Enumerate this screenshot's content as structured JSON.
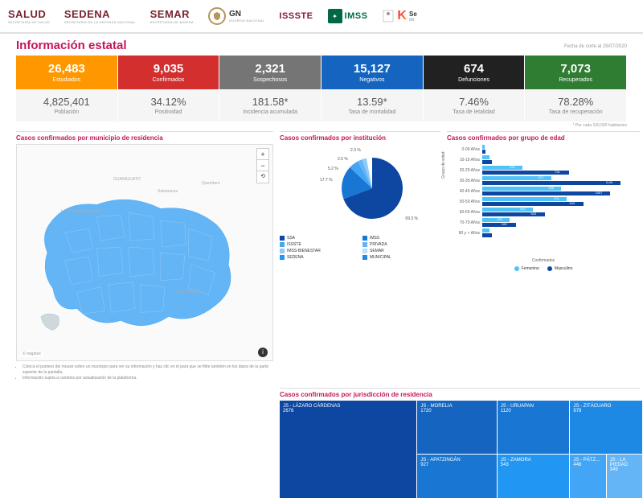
{
  "header": {
    "logos": [
      {
        "main": "SALUD",
        "sub": "SECRETARÍA DE SALUD"
      },
      {
        "main": "SEDENA",
        "sub": "SECRETARÍA DE LA DEFENSA NACIONAL"
      },
      {
        "main": "SEMAR",
        "sub": "SECRETARÍA DE MARINA"
      },
      {
        "main": "GN",
        "sub": "GUARDIA NACIONAL"
      },
      {
        "main": "ISSSTE",
        "sub": ""
      },
      {
        "main": "IMSS",
        "sub": ""
      },
      {
        "main": "Se",
        "sub": "de"
      }
    ]
  },
  "title": "Información estatal",
  "date_note": "Fecha de corte al 25/07/2020",
  "stats_top": [
    {
      "val": "26,483",
      "lbl": "Estudiados",
      "bg": "#ff9800"
    },
    {
      "val": "9,035",
      "lbl": "Confirmados",
      "bg": "#d32f2f"
    },
    {
      "val": "2,321",
      "lbl": "Sospechosos",
      "bg": "#757575"
    },
    {
      "val": "15,127",
      "lbl": "Negativos",
      "bg": "#1565c0"
    },
    {
      "val": "674",
      "lbl": "Defunciones",
      "bg": "#212121"
    },
    {
      "val": "7,073",
      "lbl": "Recuperados",
      "bg": "#2e7d32"
    }
  ],
  "stats_bottom": [
    {
      "val": "4,825,401",
      "lbl": "Población"
    },
    {
      "val": "34.12%",
      "lbl": "Positividad"
    },
    {
      "val": "181.58*",
      "lbl": "Incidencia acumulada"
    },
    {
      "val": "13.59*",
      "lbl": "Tasa de mortalidad"
    },
    {
      "val": "7.46%",
      "lbl": "Tasa de letalidad"
    },
    {
      "val": "78.28%",
      "lbl": "Tasa de recuperación"
    }
  ],
  "footnote": "* Por cada 100,000 habitantes",
  "map": {
    "title": "Casos confirmados por municipio de residencia",
    "fill": "#64b5f6",
    "border": "#90caf9",
    "labels": [
      "GUANAJUATO",
      "Salamanca",
      "Querétaro",
      "La Piedad de Cabadas",
      "MICHOACÁN"
    ],
    "attrib": "© mapbox",
    "notes": [
      "Coloca el puntero del mouse sobre un municipio para ver su información y haz clic en él para que se filtre también en los datos de la parte superior de la pantalla.",
      "Información sujeta a cambios por actualización de la plataforma."
    ]
  },
  "pie": {
    "title": "Casos confirmados por institución",
    "slices": [
      {
        "pct": 69.3,
        "label": "69.3 %",
        "color": "#0d47a1"
      },
      {
        "pct": 17.7,
        "label": "17.7 %",
        "color": "#1976d2"
      },
      {
        "pct": 5.2,
        "label": "5.2 %",
        "color": "#42a5f5"
      },
      {
        "pct": 2.5,
        "label": "2.5 %",
        "color": "#64b5f6"
      },
      {
        "pct": 2.3,
        "label": "2.3 %",
        "color": "#90caf9"
      }
    ],
    "legend": [
      {
        "name": "SSA",
        "color": "#0d47a1"
      },
      {
        "name": "IMSS",
        "color": "#1976d2"
      },
      {
        "name": "ISSSTE",
        "color": "#42a5f5"
      },
      {
        "name": "PRIVADA",
        "color": "#64b5f6"
      },
      {
        "name": "IMSS-BIENESTAR",
        "color": "#90caf9"
      },
      {
        "name": "SEMAR",
        "color": "#bbdefb"
      },
      {
        "name": "SEDENA",
        "color": "#2196f3"
      },
      {
        "name": "MUNICIPAL",
        "color": "#1e88e5"
      }
    ]
  },
  "age": {
    "title": "Casos confirmados por grupo de edad",
    "ylabel": "Grupo de edad",
    "xlabel": "Confirmados",
    "groups": [
      {
        "lbl": "0-09 Años",
        "f": 20,
        "m": 25
      },
      {
        "lbl": "10-19 Años",
        "f": 60,
        "m": 80
      },
      {
        "lbl": "20-29 Años",
        "f": 334,
        "m": 718
      },
      {
        "lbl": "30-39 Años",
        "f": 571,
        "m": 1145
      },
      {
        "lbl": "40-49 Años",
        "f": 656,
        "m": 1057
      },
      {
        "lbl": "50-59 Años",
        "f": 701,
        "m": 843
      },
      {
        "lbl": "60-69 Años",
        "f": 419,
        "m": 523
      },
      {
        "lbl": "70-79 Años",
        "f": 229,
        "m": 280
      },
      {
        "lbl": "80 y + Años",
        "f": 60,
        "m": 80
      }
    ],
    "max": 1200,
    "colors": {
      "f": "#4fc3f7",
      "m": "#0d47a1"
    },
    "legend": [
      {
        "name": "Femenino",
        "color": "#4fc3f7"
      },
      {
        "name": "Masculino",
        "color": "#0d47a1"
      }
    ]
  },
  "treemap": {
    "title": "Casos confirmados por jurisdicción de residencia",
    "cells": [
      {
        "name": "JS - LÁZARO CÁRDENAS",
        "val": "2676",
        "bg": "#0d47a1",
        "gc": "1",
        "gr": "1 / 3"
      },
      {
        "name": "JS - MORELIA",
        "val": "1720",
        "bg": "#1565c0",
        "gc": "2",
        "gr": "1"
      },
      {
        "name": "JS - URUAPAN",
        "val": "1120",
        "bg": "#1976d2",
        "gc": "3",
        "gr": "1"
      },
      {
        "name": "JS - ZITÁCUARO",
        "val": "979",
        "bg": "#1e88e5",
        "gc": "4",
        "gr": "1"
      },
      {
        "name": "JS - APATZINGÁN",
        "val": "927",
        "bg": "#1976d2",
        "gc": "2",
        "gr": "2"
      },
      {
        "name": "JS - ZAMORA",
        "val": "543",
        "bg": "#2196f3",
        "gc": "3",
        "gr": "2"
      },
      {
        "name": "JS - PÁTZ…",
        "val": "448",
        "bg": "#42a5f5",
        "gc": "4",
        "gr": "2",
        "half": "l"
      },
      {
        "name": "JS - LA PIEDAD",
        "val": "349",
        "bg": "#64b5f6",
        "gc": "4",
        "gr": "2",
        "half": "r"
      }
    ]
  }
}
